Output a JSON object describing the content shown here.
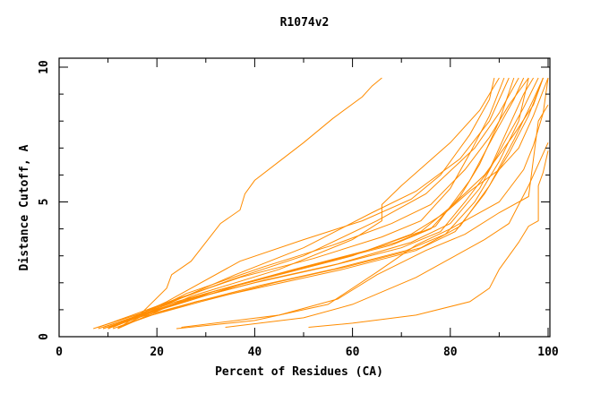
{
  "chart_data": {
    "type": "line",
    "title": "R1074v2",
    "xlabel": "Percent of Residues (CA)",
    "ylabel": "Distance Cutoff, A",
    "xlim": [
      0,
      100
    ],
    "ylim": [
      0,
      10
    ],
    "xticks": [
      0,
      20,
      40,
      60,
      80,
      100
    ],
    "yticks": [
      0,
      5,
      10
    ],
    "grid": false,
    "line_color": "#ff8c00",
    "series": [
      {
        "points": [
          [
            12,
            0.3
          ],
          [
            17,
            0.9
          ],
          [
            22,
            1.8
          ],
          [
            23,
            2.3
          ],
          [
            27,
            2.8
          ],
          [
            33,
            4.2
          ],
          [
            37,
            4.7
          ],
          [
            38,
            5.3
          ],
          [
            40,
            5.8
          ],
          [
            45,
            6.5
          ],
          [
            50,
            7.2
          ],
          [
            56,
            8.1
          ],
          [
            62,
            8.9
          ],
          [
            64,
            9.3
          ],
          [
            66,
            9.6
          ]
        ]
      },
      {
        "points": [
          [
            24,
            0.3
          ],
          [
            40,
            0.6
          ],
          [
            55,
            1.2
          ],
          [
            65,
            2.4
          ],
          [
            73,
            3.4
          ],
          [
            80,
            4.0
          ],
          [
            90,
            5.0
          ],
          [
            95,
            6.2
          ],
          [
            97,
            7.1
          ],
          [
            99,
            8.3
          ],
          [
            100,
            9.6
          ]
        ]
      },
      {
        "points": [
          [
            34,
            0.35
          ],
          [
            50,
            0.7
          ],
          [
            60,
            1.2
          ],
          [
            73,
            2.2
          ],
          [
            80,
            2.9
          ],
          [
            87,
            3.6
          ],
          [
            92,
            4.2
          ],
          [
            94,
            4.9
          ],
          [
            96,
            5.6
          ],
          [
            98,
            6.4
          ],
          [
            100,
            7.2
          ]
        ]
      },
      {
        "points": [
          [
            51,
            0.35
          ],
          [
            60,
            0.5
          ],
          [
            73,
            0.8
          ],
          [
            84,
            1.3
          ],
          [
            88,
            1.8
          ],
          [
            90,
            2.5
          ],
          [
            92,
            3.0
          ],
          [
            94,
            3.5
          ],
          [
            96,
            4.1
          ],
          [
            98,
            4.3
          ],
          [
            98,
            5.6
          ],
          [
            99,
            6.1
          ],
          [
            100,
            6.9
          ]
        ]
      },
      {
        "points": [
          [
            25,
            0.35
          ],
          [
            45,
            0.8
          ],
          [
            57,
            1.4
          ],
          [
            65,
            2.3
          ],
          [
            75,
            3.2
          ],
          [
            83,
            3.8
          ],
          [
            90,
            4.6
          ],
          [
            96,
            5.2
          ],
          [
            98,
            8.0
          ],
          [
            100,
            8.6
          ]
        ]
      },
      {
        "points": [
          [
            8,
            0.3
          ],
          [
            15,
            0.7
          ],
          [
            25,
            1.3
          ],
          [
            40,
            2.0
          ],
          [
            55,
            2.6
          ],
          [
            70,
            3.3
          ],
          [
            78,
            3.9
          ],
          [
            83,
            5.0
          ],
          [
            88,
            6.2
          ],
          [
            92,
            7.8
          ],
          [
            95,
            9.0
          ],
          [
            97,
            9.6
          ]
        ]
      },
      {
        "points": [
          [
            9,
            0.3
          ],
          [
            16,
            0.7
          ],
          [
            26,
            1.2
          ],
          [
            41,
            1.9
          ],
          [
            56,
            2.5
          ],
          [
            71,
            3.2
          ],
          [
            79,
            3.8
          ],
          [
            85,
            5.0
          ],
          [
            90,
            6.5
          ],
          [
            94,
            8.0
          ],
          [
            96,
            9.6
          ]
        ]
      },
      {
        "points": [
          [
            7,
            0.3
          ],
          [
            14,
            0.7
          ],
          [
            24,
            1.3
          ],
          [
            38,
            2.0
          ],
          [
            53,
            2.7
          ],
          [
            68,
            3.4
          ],
          [
            76,
            4.0
          ],
          [
            82,
            5.2
          ],
          [
            86,
            6.4
          ],
          [
            90,
            8.0
          ],
          [
            93,
            9.6
          ]
        ]
      },
      {
        "points": [
          [
            10,
            0.35
          ],
          [
            17,
            0.8
          ],
          [
            27,
            1.4
          ],
          [
            42,
            2.1
          ],
          [
            57,
            2.7
          ],
          [
            72,
            3.5
          ],
          [
            80,
            4.2
          ],
          [
            86,
            5.5
          ],
          [
            91,
            7.2
          ],
          [
            95,
            8.5
          ],
          [
            98,
            9.6
          ]
        ]
      },
      {
        "points": [
          [
            11,
            0.3
          ],
          [
            18,
            0.75
          ],
          [
            28,
            1.3
          ],
          [
            43,
            1.9
          ],
          [
            58,
            2.5
          ],
          [
            73,
            3.2
          ],
          [
            81,
            3.9
          ],
          [
            87,
            5.3
          ],
          [
            92,
            6.8
          ],
          [
            96,
            8.2
          ],
          [
            99,
            9.6
          ]
        ]
      },
      {
        "points": [
          [
            8,
            0.35
          ],
          [
            15,
            0.8
          ],
          [
            24,
            1.4
          ],
          [
            37,
            2.2
          ],
          [
            52,
            2.9
          ],
          [
            66,
            3.7
          ],
          [
            74,
            4.3
          ],
          [
            80,
            5.5
          ],
          [
            84,
            6.8
          ],
          [
            88,
            8.2
          ],
          [
            91,
            9.6
          ]
        ]
      },
      {
        "points": [
          [
            9,
            0.3
          ],
          [
            16,
            0.75
          ],
          [
            26,
            1.3
          ],
          [
            40,
            2.1
          ],
          [
            55,
            2.8
          ],
          [
            69,
            3.5
          ],
          [
            77,
            4.1
          ],
          [
            84,
            5.8
          ],
          [
            89,
            7.5
          ],
          [
            93,
            8.8
          ],
          [
            95,
            9.6
          ]
        ]
      },
      {
        "points": [
          [
            12,
            0.35
          ],
          [
            19,
            0.8
          ],
          [
            29,
            1.3
          ],
          [
            44,
            2.0
          ],
          [
            59,
            2.6
          ],
          [
            74,
            3.3
          ],
          [
            82,
            4.1
          ],
          [
            88,
            5.6
          ],
          [
            93,
            7.3
          ],
          [
            97,
            8.8
          ],
          [
            99,
            9.6
          ]
        ]
      },
      {
        "points": [
          [
            10,
            0.3
          ],
          [
            20,
            1.1
          ],
          [
            35,
            2.1
          ],
          [
            50,
            3.0
          ],
          [
            65,
            4.3
          ],
          [
            75,
            5.3
          ],
          [
            85,
            7.0
          ],
          [
            90,
            8.3
          ],
          [
            94,
            9.6
          ]
        ]
      },
      {
        "points": [
          [
            11,
            0.35
          ],
          [
            22,
            1.2
          ],
          [
            36,
            2.3
          ],
          [
            50,
            3.3
          ],
          [
            64,
            4.6
          ],
          [
            73,
            5.4
          ],
          [
            82,
            6.6
          ],
          [
            88,
            8.0
          ],
          [
            92,
            9.6
          ]
        ]
      },
      {
        "points": [
          [
            12,
            0.3
          ],
          [
            27,
            1.5
          ],
          [
            45,
            2.5
          ],
          [
            60,
            3.6
          ],
          [
            66,
            4.3
          ],
          [
            66,
            4.9
          ],
          [
            70,
            5.6
          ],
          [
            80,
            7.2
          ],
          [
            86,
            8.4
          ],
          [
            90,
            9.6
          ]
        ]
      },
      {
        "points": [
          [
            10,
            0.3
          ],
          [
            22,
            1.3
          ],
          [
            37,
            2.8
          ],
          [
            50,
            3.6
          ],
          [
            62,
            4.3
          ],
          [
            72,
            5.1
          ],
          [
            78,
            6.0
          ],
          [
            84,
            7.5
          ],
          [
            88,
            8.8
          ],
          [
            89,
            9.6
          ]
        ]
      },
      {
        "points": [
          [
            13,
            0.4
          ],
          [
            26,
            1.6
          ],
          [
            42,
            2.6
          ],
          [
            56,
            3.4
          ],
          [
            68,
            4.2
          ],
          [
            76,
            4.9
          ],
          [
            83,
            6.2
          ],
          [
            88,
            7.4
          ],
          [
            92,
            8.6
          ],
          [
            96,
            9.6
          ]
        ]
      },
      {
        "points": [
          [
            9,
            0.35
          ],
          [
            18,
            0.9
          ],
          [
            30,
            1.6
          ],
          [
            45,
            2.3
          ],
          [
            60,
            3.0
          ],
          [
            72,
            3.8
          ],
          [
            79,
            4.6
          ],
          [
            84,
            5.4
          ],
          [
            90,
            6.2
          ],
          [
            94,
            7.0
          ],
          [
            97,
            8.2
          ],
          [
            100,
            9.6
          ]
        ]
      },
      {
        "points": [
          [
            10,
            0.3
          ],
          [
            19,
            0.9
          ],
          [
            32,
            1.7
          ],
          [
            48,
            2.5
          ],
          [
            63,
            3.2
          ],
          [
            74,
            3.9
          ],
          [
            80,
            4.8
          ],
          [
            87,
            6.0
          ],
          [
            93,
            7.5
          ],
          [
            97,
            8.6
          ],
          [
            99,
            9.6
          ]
        ]
      }
    ]
  }
}
